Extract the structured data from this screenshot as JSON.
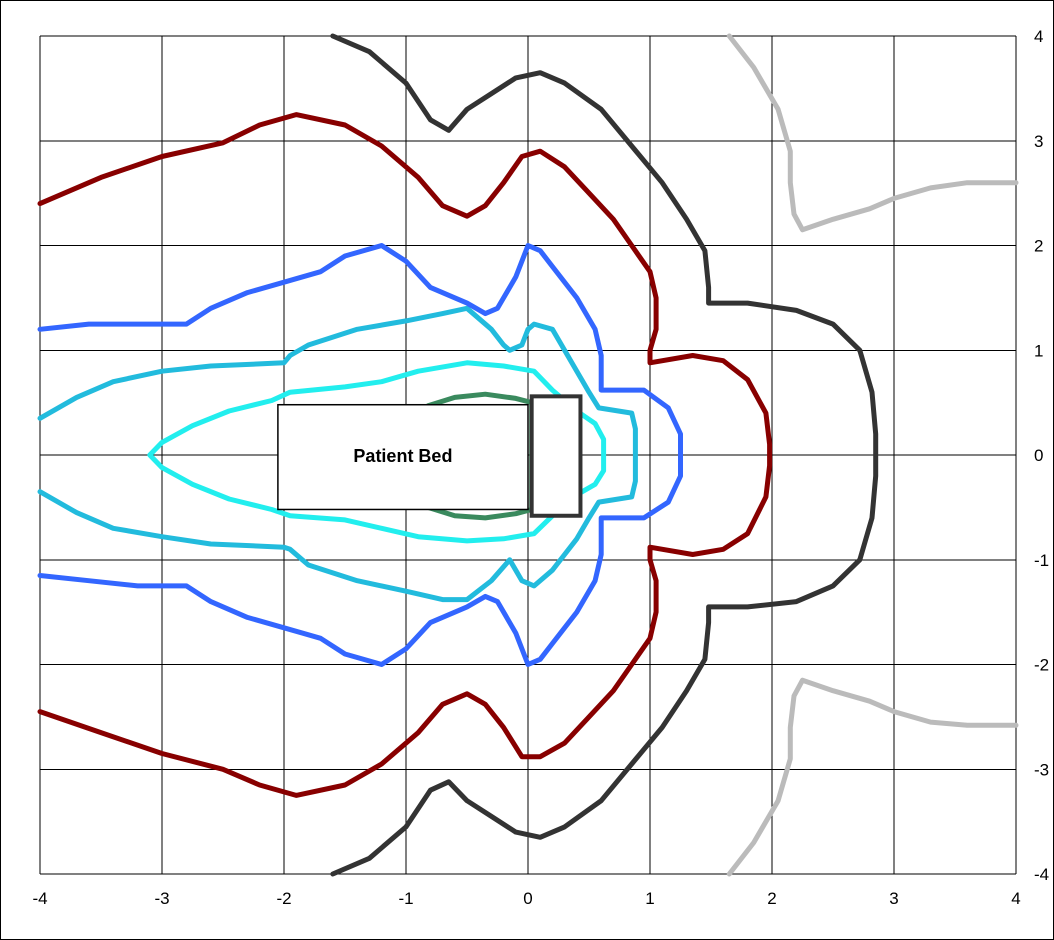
{
  "chart_data": {
    "type": "line",
    "title": "",
    "xlabel": "",
    "ylabel": "",
    "xlim": [
      -4,
      4
    ],
    "ylim": [
      -4,
      4
    ],
    "grid": true,
    "y_axis_side": "right",
    "x_ticks": [
      "-4",
      "-3",
      "-2",
      "-1",
      "0",
      "1",
      "2",
      "3",
      "4"
    ],
    "y_ticks": [
      "4",
      "3",
      "2",
      "1",
      "0",
      "-1",
      "-2",
      "-3",
      "-4"
    ],
    "annotations": {
      "bed_label": "Patient Bed",
      "bed": {
        "x": [
          -2.05,
          0.0
        ],
        "y": [
          -0.52,
          0.48
        ]
      },
      "bed_head": {
        "x": [
          0.03,
          0.43
        ],
        "y": [
          -0.58,
          0.56
        ]
      }
    },
    "series": [
      {
        "color": "#3a8a5e",
        "points": [
          [
            -0.82,
            0.47
          ],
          [
            -0.6,
            0.55
          ],
          [
            -0.35,
            0.58
          ],
          [
            -0.1,
            0.54
          ],
          [
            0.03,
            0.5
          ],
          [
            0.03,
            -0.52
          ],
          [
            -0.1,
            -0.56
          ],
          [
            -0.35,
            -0.6
          ],
          [
            -0.6,
            -0.58
          ],
          [
            -0.82,
            -0.5
          ]
        ]
      },
      {
        "color": "#22eeee",
        "points": [
          [
            -3.1,
            0
          ],
          [
            -3.0,
            0.12
          ],
          [
            -2.75,
            0.28
          ],
          [
            -2.45,
            0.42
          ],
          [
            -2.1,
            0.52
          ],
          [
            -1.95,
            0.6
          ],
          [
            -1.5,
            0.65
          ],
          [
            -1.2,
            0.7
          ],
          [
            -0.9,
            0.8
          ],
          [
            -0.5,
            0.88
          ],
          [
            -0.2,
            0.85
          ],
          [
            0.05,
            0.8
          ],
          [
            0.2,
            0.62
          ],
          [
            0.4,
            0.42
          ],
          [
            0.55,
            0.3
          ],
          [
            0.62,
            0.15
          ],
          [
            0.62,
            -0.15
          ],
          [
            0.55,
            -0.28
          ],
          [
            0.4,
            -0.38
          ],
          [
            0.2,
            -0.58
          ],
          [
            0.05,
            -0.75
          ],
          [
            -0.2,
            -0.8
          ],
          [
            -0.5,
            -0.82
          ],
          [
            -0.9,
            -0.78
          ],
          [
            -1.2,
            -0.7
          ],
          [
            -1.5,
            -0.62
          ],
          [
            -1.95,
            -0.58
          ],
          [
            -2.1,
            -0.52
          ],
          [
            -2.45,
            -0.42
          ],
          [
            -2.75,
            -0.28
          ],
          [
            -3.0,
            -0.12
          ],
          [
            -3.1,
            0
          ]
        ]
      },
      {
        "color": "#22bbdd",
        "points": [
          [
            -4.0,
            0.35
          ],
          [
            -3.7,
            0.55
          ],
          [
            -3.4,
            0.7
          ],
          [
            -3.0,
            0.8
          ],
          [
            -2.6,
            0.85
          ],
          [
            -2.0,
            0.88
          ],
          [
            -1.95,
            0.95
          ],
          [
            -1.8,
            1.05
          ],
          [
            -1.4,
            1.2
          ],
          [
            -1.0,
            1.28
          ],
          [
            -0.7,
            1.35
          ],
          [
            -0.5,
            1.4
          ],
          [
            -0.3,
            1.2
          ],
          [
            -0.2,
            1.05
          ],
          [
            -0.15,
            1.0
          ],
          [
            -0.05,
            1.05
          ],
          [
            0.0,
            1.2
          ],
          [
            0.05,
            1.25
          ],
          [
            0.2,
            1.2
          ],
          [
            0.3,
            1.0
          ],
          [
            0.4,
            0.8
          ],
          [
            0.5,
            0.6
          ],
          [
            0.58,
            0.45
          ],
          [
            0.85,
            0.4
          ],
          [
            0.88,
            0.25
          ],
          [
            0.88,
            -0.25
          ],
          [
            0.85,
            -0.4
          ],
          [
            0.58,
            -0.45
          ],
          [
            0.5,
            -0.6
          ],
          [
            0.4,
            -0.8
          ],
          [
            0.3,
            -0.95
          ],
          [
            0.2,
            -1.1
          ],
          [
            0.05,
            -1.25
          ],
          [
            -0.05,
            -1.2
          ],
          [
            -0.15,
            -1.0
          ],
          [
            -0.3,
            -1.2
          ],
          [
            -0.5,
            -1.38
          ],
          [
            -0.7,
            -1.38
          ],
          [
            -1.0,
            -1.3
          ],
          [
            -1.4,
            -1.2
          ],
          [
            -1.8,
            -1.05
          ],
          [
            -1.95,
            -0.9
          ],
          [
            -2.0,
            -0.88
          ],
          [
            -2.6,
            -0.85
          ],
          [
            -3.0,
            -0.78
          ],
          [
            -3.4,
            -0.7
          ],
          [
            -3.7,
            -0.55
          ],
          [
            -4.0,
            -0.35
          ]
        ]
      },
      {
        "color": "#3366ff",
        "points": [
          [
            -4.0,
            1.2
          ],
          [
            -3.6,
            1.25
          ],
          [
            -3.2,
            1.25
          ],
          [
            -2.8,
            1.25
          ],
          [
            -2.6,
            1.4
          ],
          [
            -2.3,
            1.55
          ],
          [
            -2.0,
            1.65
          ],
          [
            -1.7,
            1.75
          ],
          [
            -1.5,
            1.9
          ],
          [
            -1.2,
            2.0
          ],
          [
            -1.0,
            1.85
          ],
          [
            -0.8,
            1.6
          ],
          [
            -0.5,
            1.45
          ],
          [
            -0.35,
            1.35
          ],
          [
            -0.25,
            1.4
          ],
          [
            -0.1,
            1.7
          ],
          [
            0.0,
            2.0
          ],
          [
            0.1,
            1.95
          ],
          [
            0.2,
            1.8
          ],
          [
            0.4,
            1.5
          ],
          [
            0.55,
            1.2
          ],
          [
            0.6,
            0.95
          ],
          [
            0.6,
            0.62
          ],
          [
            0.95,
            0.62
          ],
          [
            1.15,
            0.45
          ],
          [
            1.25,
            0.2
          ],
          [
            1.25,
            -0.2
          ],
          [
            1.15,
            -0.45
          ],
          [
            0.95,
            -0.6
          ],
          [
            0.6,
            -0.6
          ],
          [
            0.6,
            -0.95
          ],
          [
            0.55,
            -1.2
          ],
          [
            0.4,
            -1.5
          ],
          [
            0.2,
            -1.8
          ],
          [
            0.1,
            -1.95
          ],
          [
            0.0,
            -2.0
          ],
          [
            -0.1,
            -1.7
          ],
          [
            -0.25,
            -1.4
          ],
          [
            -0.35,
            -1.35
          ],
          [
            -0.5,
            -1.45
          ],
          [
            -0.8,
            -1.6
          ],
          [
            -1.0,
            -1.85
          ],
          [
            -1.2,
            -2.0
          ],
          [
            -1.5,
            -1.9
          ],
          [
            -1.7,
            -1.75
          ],
          [
            -2.0,
            -1.65
          ],
          [
            -2.3,
            -1.55
          ],
          [
            -2.6,
            -1.4
          ],
          [
            -2.8,
            -1.25
          ],
          [
            -3.2,
            -1.25
          ],
          [
            -3.6,
            -1.2
          ],
          [
            -4.0,
            -1.15
          ]
        ]
      },
      {
        "color": "#880000",
        "points": [
          [
            -4.0,
            2.4
          ],
          [
            -3.5,
            2.65
          ],
          [
            -3.0,
            2.85
          ],
          [
            -2.5,
            2.98
          ],
          [
            -2.2,
            3.15
          ],
          [
            -1.9,
            3.25
          ],
          [
            -1.5,
            3.15
          ],
          [
            -1.2,
            2.95
          ],
          [
            -0.9,
            2.65
          ],
          [
            -0.7,
            2.38
          ],
          [
            -0.5,
            2.28
          ],
          [
            -0.35,
            2.38
          ],
          [
            -0.2,
            2.6
          ],
          [
            -0.05,
            2.85
          ],
          [
            0.1,
            2.9
          ],
          [
            0.3,
            2.75
          ],
          [
            0.5,
            2.5
          ],
          [
            0.7,
            2.25
          ],
          [
            0.85,
            2.0
          ],
          [
            1.0,
            1.75
          ],
          [
            1.05,
            1.5
          ],
          [
            1.05,
            1.2
          ],
          [
            1.0,
            1.0
          ],
          [
            1.0,
            0.88
          ],
          [
            1.35,
            0.95
          ],
          [
            1.6,
            0.9
          ],
          [
            1.8,
            0.72
          ],
          [
            1.95,
            0.4
          ],
          [
            1.98,
            0.1
          ],
          [
            1.98,
            -0.1
          ],
          [
            1.95,
            -0.4
          ],
          [
            1.8,
            -0.75
          ],
          [
            1.6,
            -0.9
          ],
          [
            1.35,
            -0.95
          ],
          [
            1.0,
            -0.88
          ],
          [
            1.0,
            -1.0
          ],
          [
            1.05,
            -1.2
          ],
          [
            1.05,
            -1.5
          ],
          [
            1.0,
            -1.75
          ],
          [
            0.85,
            -2.0
          ],
          [
            0.7,
            -2.25
          ],
          [
            0.5,
            -2.5
          ],
          [
            0.3,
            -2.75
          ],
          [
            0.1,
            -2.88
          ],
          [
            -0.05,
            -2.88
          ],
          [
            -0.2,
            -2.6
          ],
          [
            -0.35,
            -2.38
          ],
          [
            -0.5,
            -2.28
          ],
          [
            -0.7,
            -2.38
          ],
          [
            -0.9,
            -2.65
          ],
          [
            -1.2,
            -2.95
          ],
          [
            -1.5,
            -3.15
          ],
          [
            -1.9,
            -3.25
          ],
          [
            -2.2,
            -3.15
          ],
          [
            -2.5,
            -3.0
          ],
          [
            -3.0,
            -2.85
          ],
          [
            -3.5,
            -2.65
          ],
          [
            -4.0,
            -2.45
          ]
        ]
      },
      {
        "color": "#333333",
        "points": [
          [
            -1.6,
            4.0
          ],
          [
            -1.3,
            3.85
          ],
          [
            -1.0,
            3.55
          ],
          [
            -0.8,
            3.2
          ],
          [
            -0.65,
            3.1
          ],
          [
            -0.5,
            3.3
          ],
          [
            -0.3,
            3.45
          ],
          [
            -0.1,
            3.6
          ],
          [
            0.1,
            3.65
          ],
          [
            0.3,
            3.55
          ],
          [
            0.6,
            3.3
          ],
          [
            0.85,
            2.95
          ],
          [
            1.1,
            2.6
          ],
          [
            1.3,
            2.25
          ],
          [
            1.45,
            1.95
          ],
          [
            1.48,
            1.6
          ],
          [
            1.48,
            1.45
          ],
          [
            1.8,
            1.45
          ],
          [
            2.2,
            1.38
          ],
          [
            2.5,
            1.25
          ],
          [
            2.72,
            1.0
          ],
          [
            2.82,
            0.6
          ],
          [
            2.85,
            0.2
          ],
          [
            2.85,
            -0.2
          ],
          [
            2.82,
            -0.6
          ],
          [
            2.72,
            -1.0
          ],
          [
            2.5,
            -1.25
          ],
          [
            2.2,
            -1.4
          ],
          [
            1.8,
            -1.45
          ],
          [
            1.48,
            -1.45
          ],
          [
            1.48,
            -1.6
          ],
          [
            1.45,
            -1.95
          ],
          [
            1.3,
            -2.25
          ],
          [
            1.1,
            -2.6
          ],
          [
            0.85,
            -2.95
          ],
          [
            0.6,
            -3.3
          ],
          [
            0.3,
            -3.55
          ],
          [
            0.1,
            -3.65
          ],
          [
            -0.1,
            -3.6
          ],
          [
            -0.3,
            -3.45
          ],
          [
            -0.5,
            -3.3
          ],
          [
            -0.65,
            -3.12
          ],
          [
            -0.8,
            -3.2
          ],
          [
            -1.0,
            -3.55
          ],
          [
            -1.3,
            -3.85
          ],
          [
            -1.6,
            -4.0
          ]
        ]
      },
      {
        "color": "#bbbbbb",
        "points": [
          [
            1.65,
            4.0
          ],
          [
            1.85,
            3.7
          ],
          [
            2.05,
            3.3
          ],
          [
            2.15,
            2.9
          ],
          [
            2.15,
            2.6
          ],
          [
            2.18,
            2.3
          ],
          [
            2.25,
            2.15
          ],
          [
            2.5,
            2.25
          ],
          [
            2.8,
            2.35
          ],
          [
            3.0,
            2.45
          ],
          [
            3.3,
            2.55
          ],
          [
            3.6,
            2.6
          ],
          [
            4.0,
            2.6
          ]
        ]
      },
      {
        "color": "#bbbbbb",
        "points": [
          [
            1.65,
            -4.0
          ],
          [
            1.85,
            -3.7
          ],
          [
            2.05,
            -3.3
          ],
          [
            2.15,
            -2.9
          ],
          [
            2.15,
            -2.6
          ],
          [
            2.18,
            -2.3
          ],
          [
            2.25,
            -2.15
          ],
          [
            2.5,
            -2.25
          ],
          [
            2.8,
            -2.35
          ],
          [
            3.0,
            -2.45
          ],
          [
            3.3,
            -2.55
          ],
          [
            3.6,
            -2.58
          ],
          [
            4.0,
            -2.58
          ]
        ]
      }
    ]
  }
}
